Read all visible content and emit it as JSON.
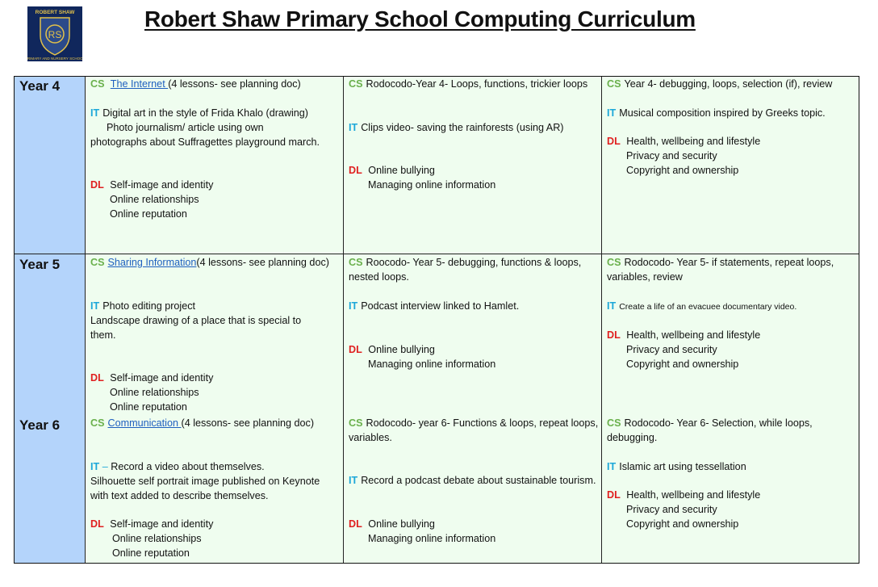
{
  "logo": {
    "text_top": "ROBERT SHAW",
    "text_bottom": "PRIMARY AND NURSERY SCHOOL",
    "monogram": "RS",
    "colors": {
      "navy": "#10275c",
      "gold": "#e2c14a"
    }
  },
  "title": "Robert Shaw Primary School Computing Curriculum",
  "colors": {
    "cs": "#6ab04c",
    "it": "#1ca7d9",
    "dl": "#e02020",
    "year_bg": "#b4d4fb",
    "cell_bg": "#effdef"
  },
  "tags": {
    "cs": "CS",
    "it": "IT",
    "dl": "DL"
  },
  "y4": {
    "label": "Year 4",
    "c1": {
      "cs_link": "The Internet ",
      "cs_text": "(4 lessons- see planning doc)",
      "it": [
        "Digital art in the style of Frida Khalo (drawing)",
        "Photo journalism/ article using own",
        "photographs about Suffragettes playground march."
      ],
      "dl": [
        "Self-image and identity",
        "Online relationships",
        "Online reputation"
      ]
    },
    "c2": {
      "cs_text": "Rodocodo-Year 4- Loops, functions, trickier loops",
      "it": [
        "Clips video- saving the rainforests (using AR)"
      ],
      "dl": [
        "Online bullying",
        "Managing online information"
      ]
    },
    "c3": {
      "cs_text": "Year 4- debugging, loops, selection (if), review",
      "it": [
        "Musical composition inspired by Greeks topic."
      ],
      "dl": [
        "Health, wellbeing and lifestyle",
        "Privacy and security",
        "Copyright and ownership"
      ]
    }
  },
  "y5": {
    "label": "Year 5",
    "c1": {
      "cs_link": "Sharing Information",
      "cs_text": "(4 lessons- see planning doc)",
      "it": [
        "Photo editing project",
        "Landscape drawing of a place that is special to them."
      ],
      "dl": [
        "Self-image and identity",
        "Online relationships",
        "Online reputation"
      ]
    },
    "c2": {
      "cs_text": "Roocodo- Year 5- debugging, functions & loops, nested loops.",
      "it": [
        "Podcast interview linked to Hamlet."
      ],
      "dl": [
        "Online bullying",
        "Managing online information"
      ]
    },
    "c3": {
      "cs_text": "Rodocodo- Year 5- if statements, repeat loops, variables, review",
      "it": [
        "Create a life of an evacuee documentary video."
      ],
      "dl": [
        "Health, wellbeing and lifestyle",
        "Privacy and security",
        "Copyright and ownership"
      ]
    }
  },
  "y6": {
    "label": "Year 6",
    "c1": {
      "cs_link": "Communication ",
      "cs_text": "(4 lessons- see planning doc)",
      "it_dash": " – ",
      "it": [
        "Record a video about themselves.",
        "Silhouette self portrait image published on Keynote with text added to describe themselves."
      ],
      "dl": [
        "Self-image and identity",
        "Online relationships",
        "Online reputation"
      ]
    },
    "c2": {
      "cs_text": "Rodocodo- year 6- Functions & loops, repeat loops, variables.",
      "it": [
        "Record a podcast debate about sustainable tourism."
      ],
      "dl": [
        "Online bullying",
        "Managing online information"
      ]
    },
    "c3": {
      "cs_text": "Rodocodo- Year 6- Selection, while loops, debugging.",
      "it": [
        "Islamic art using tessellation"
      ],
      "dl": [
        "Health, wellbeing and lifestyle",
        "Privacy and security",
        "Copyright and ownership"
      ]
    }
  }
}
